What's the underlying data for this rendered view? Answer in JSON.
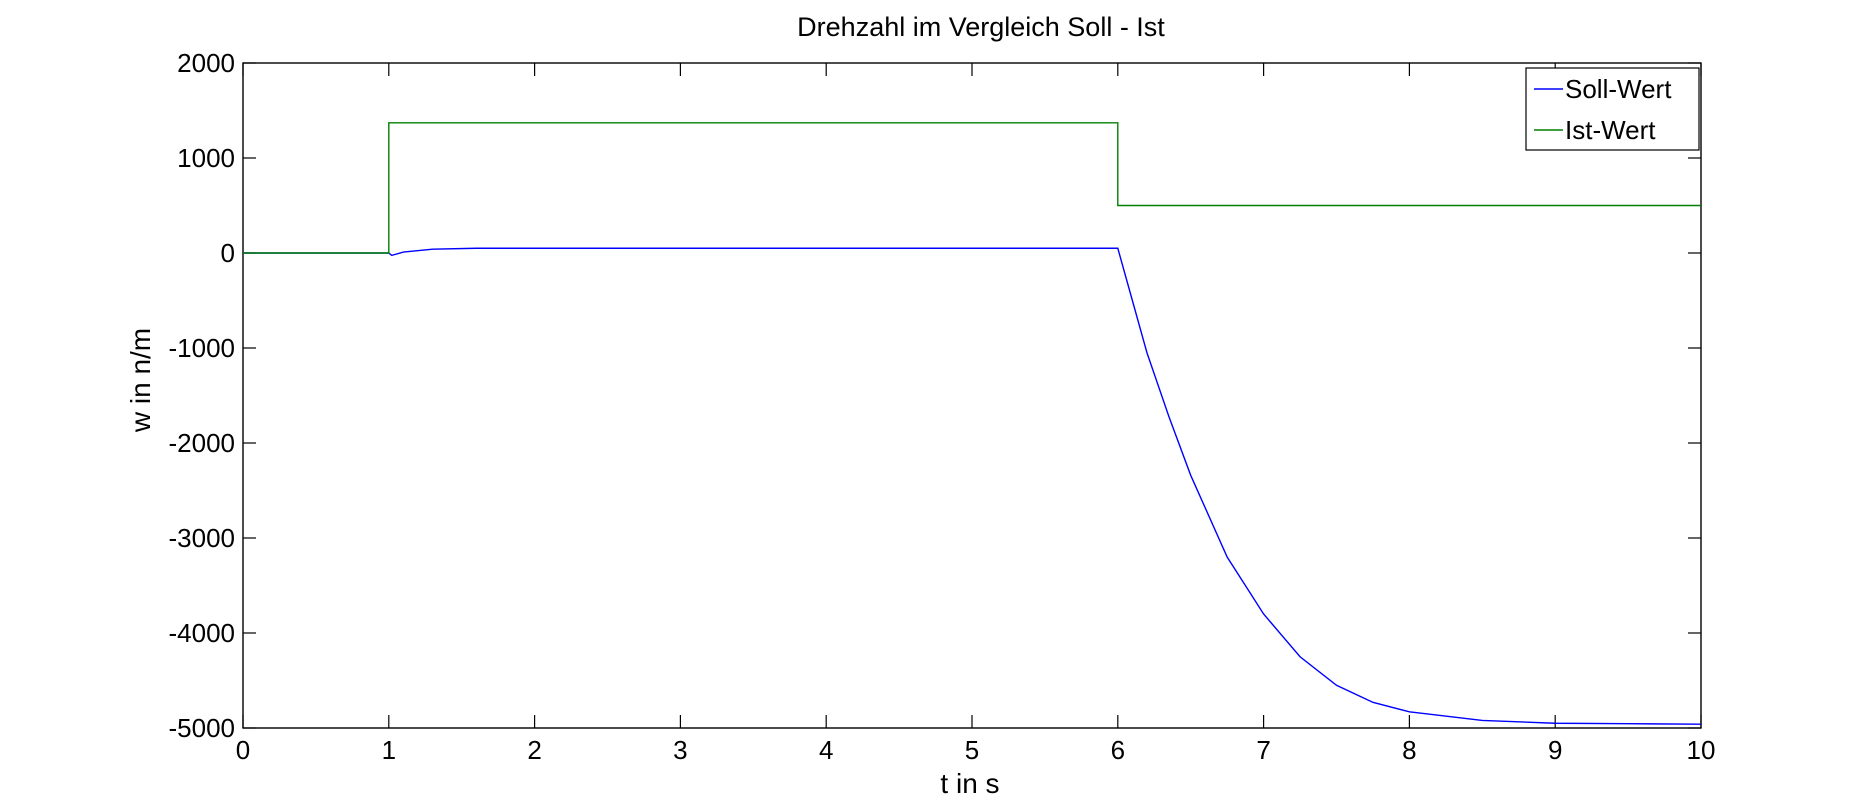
{
  "chart_data": {
    "type": "line",
    "title": "Drehzahl im Vergleich Soll - Ist",
    "xlabel": "t in s",
    "ylabel": "w in n/m",
    "xlim": [
      0,
      10
    ],
    "ylim": [
      -5000,
      2000
    ],
    "xticks": [
      0,
      1,
      2,
      3,
      4,
      5,
      6,
      7,
      8,
      9,
      10
    ],
    "yticks": [
      -5000,
      -4000,
      -3000,
      -2000,
      -1000,
      0,
      1000,
      2000
    ],
    "grid": false,
    "legend_position": "top-right",
    "series": [
      {
        "name": "Soll-Wert",
        "color": "#0000ff",
        "points": [
          [
            0,
            0
          ],
          [
            0.33,
            0
          ],
          [
            1.0,
            0
          ],
          [
            1.02,
            -25
          ],
          [
            1.1,
            10
          ],
          [
            1.3,
            40
          ],
          [
            1.6,
            50
          ],
          [
            2,
            50
          ],
          [
            3,
            50
          ],
          [
            4,
            50
          ],
          [
            5,
            50
          ],
          [
            6,
            50
          ],
          [
            6.1,
            -500
          ],
          [
            6.2,
            -1050
          ],
          [
            6.35,
            -1720
          ],
          [
            6.5,
            -2340
          ],
          [
            6.75,
            -3200
          ],
          [
            7.0,
            -3800
          ],
          [
            7.25,
            -4250
          ],
          [
            7.5,
            -4550
          ],
          [
            7.75,
            -4730
          ],
          [
            8.0,
            -4830
          ],
          [
            8.5,
            -4920
          ],
          [
            9.0,
            -4950
          ],
          [
            9.5,
            -4955
          ],
          [
            10.0,
            -4960
          ]
        ]
      },
      {
        "name": "Ist-Wert",
        "color": "#008000",
        "points": [
          [
            0,
            0
          ],
          [
            1.0,
            0
          ],
          [
            1.0,
            1370
          ],
          [
            6.0,
            1370
          ],
          [
            6.0,
            500
          ],
          [
            10.0,
            500
          ]
        ]
      }
    ]
  }
}
